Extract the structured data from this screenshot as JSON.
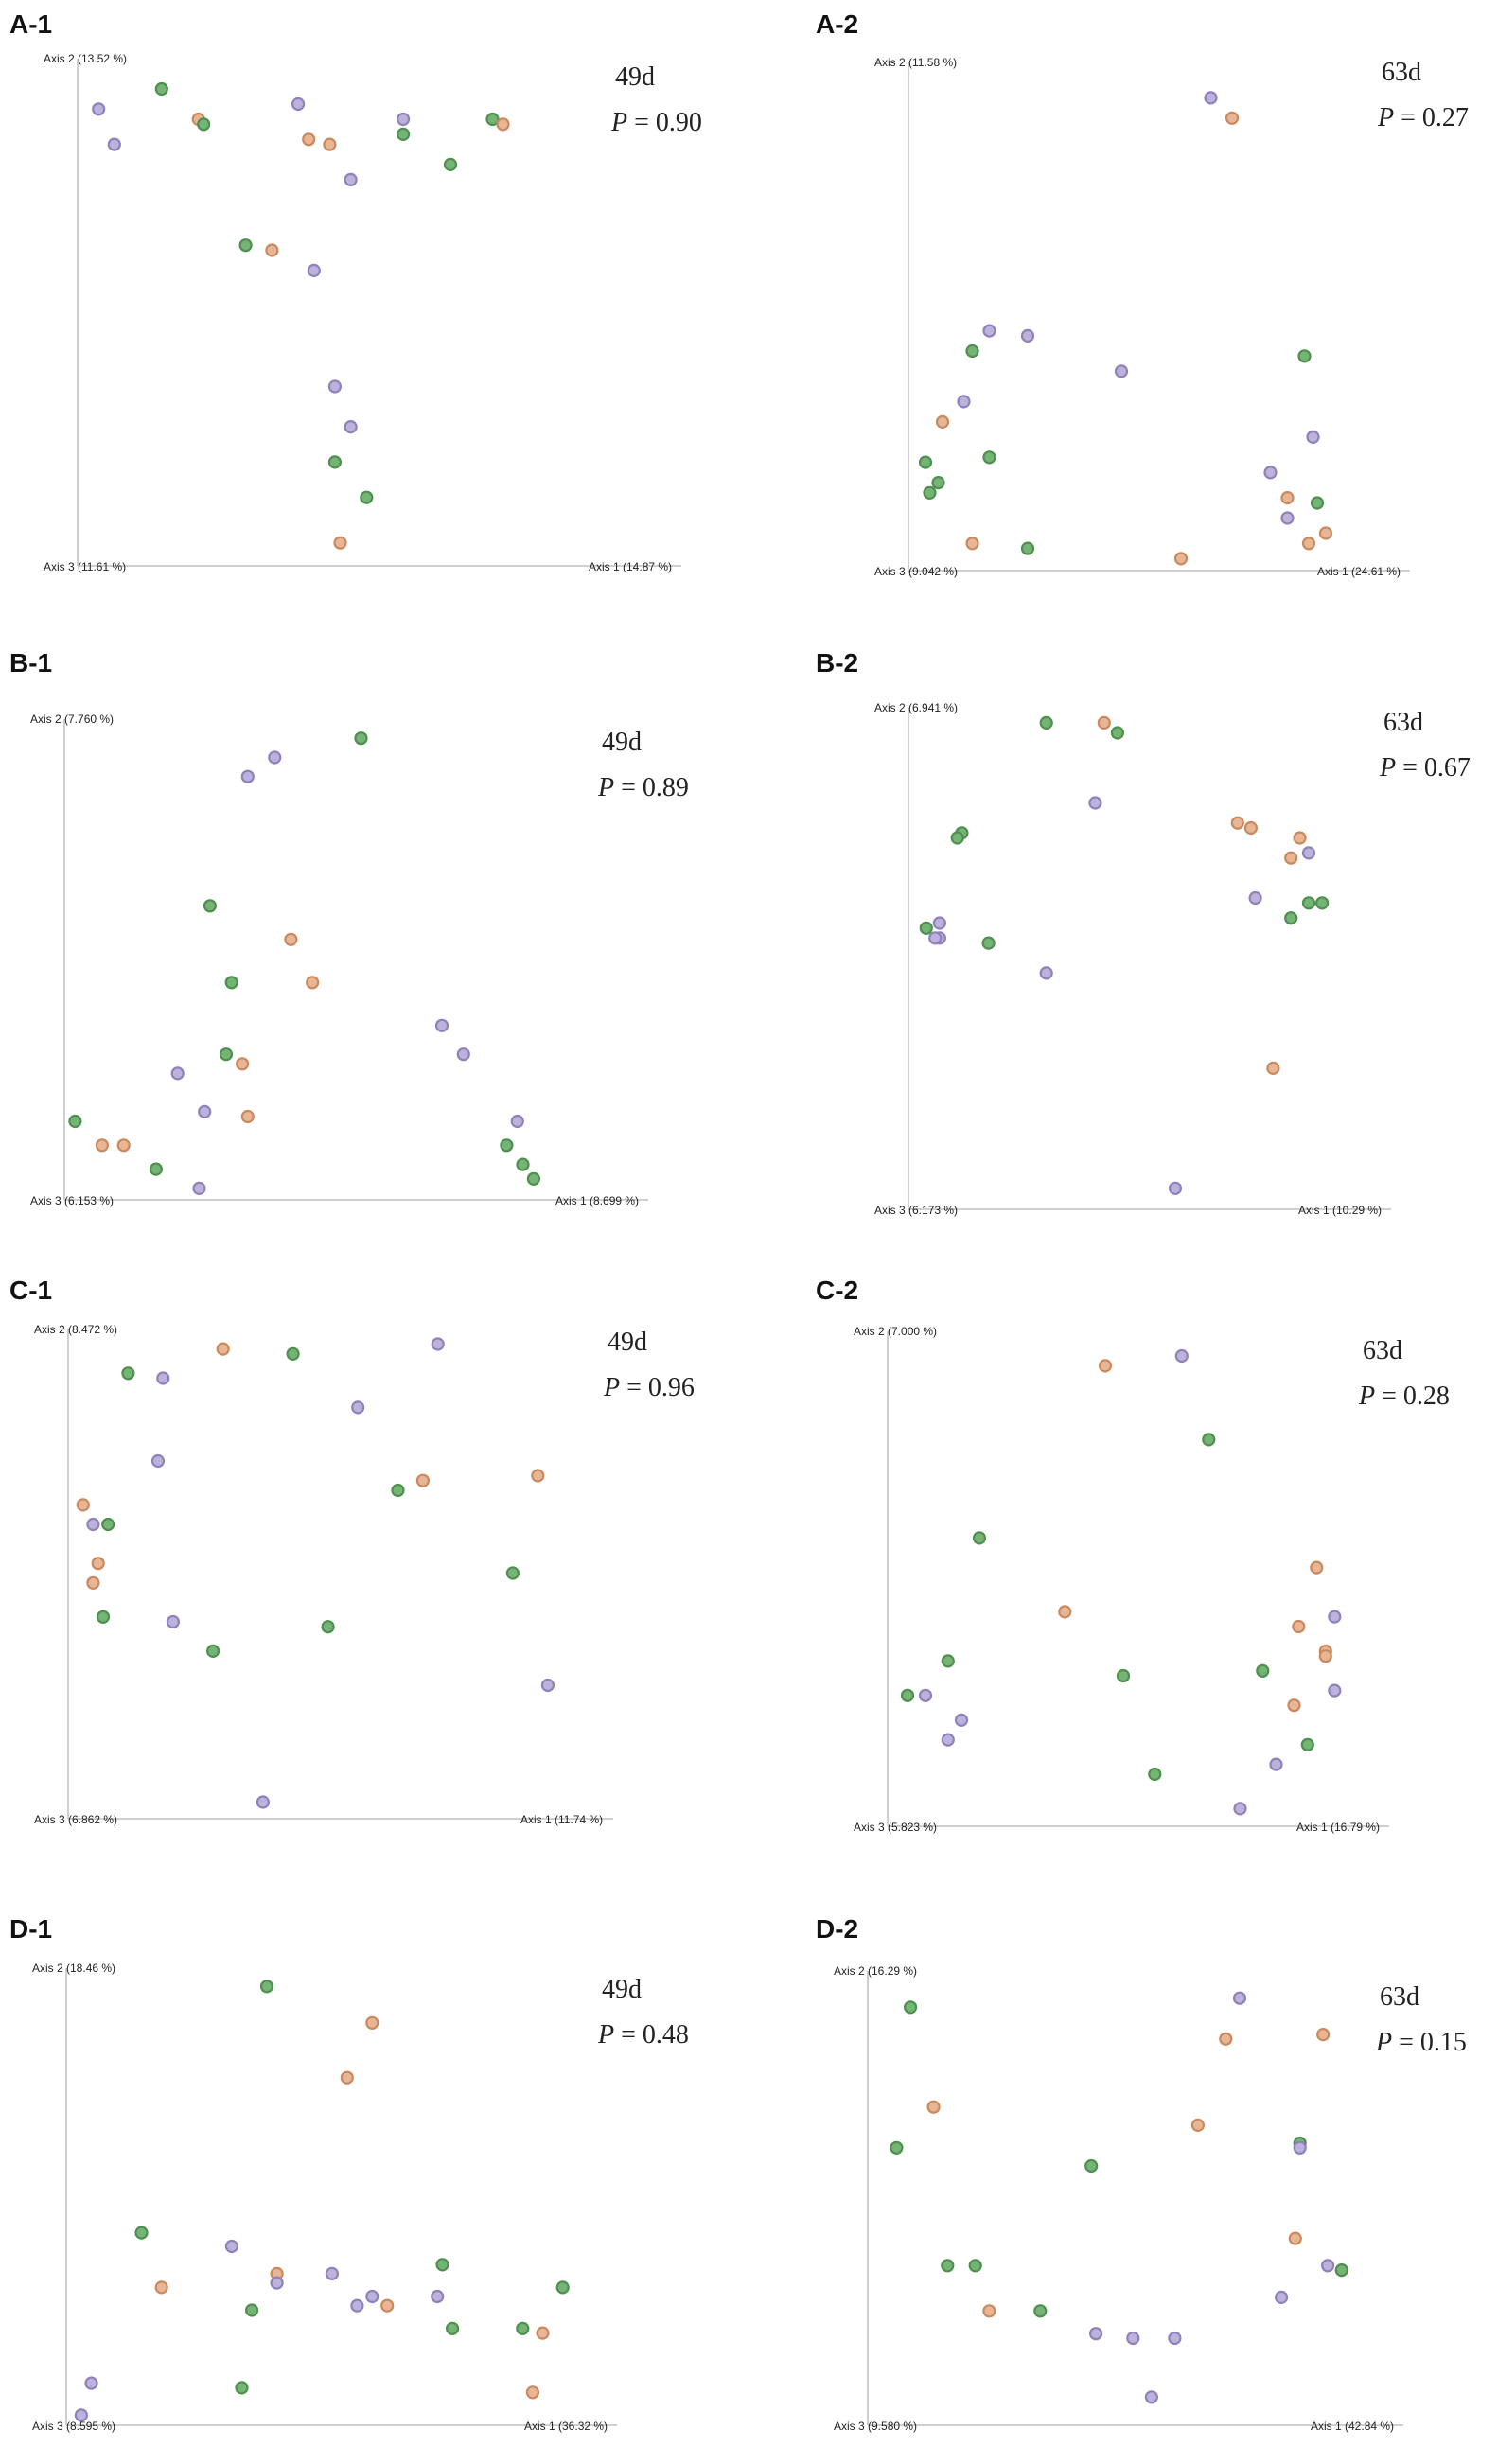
{
  "colors": {
    "orange": {
      "fill": "#e8b694",
      "stroke": "#c98a5f"
    },
    "green": {
      "fill": "#74b474",
      "stroke": "#4f8f4f"
    },
    "purple": {
      "fill": "#bcb2db",
      "stroke": "#8f82bb"
    }
  },
  "chart_data": [
    {
      "panel": "A-1",
      "type": "scatter",
      "day": "49d",
      "p_label": "P",
      "p_value": "= 0.90",
      "axis1_label": "Axis 1 (14.87 %)",
      "axis2_label": "Axis 2 (13.52 %)",
      "axis3_label": "Axis 3 (11.61 %)",
      "xlim": [
        0,
        1
      ],
      "ylim": [
        0,
        1
      ],
      "points": [
        {
          "x": 0.04,
          "y": 0.9,
          "group": "purple"
        },
        {
          "x": 0.07,
          "y": 0.83,
          "group": "purple"
        },
        {
          "x": 0.16,
          "y": 0.94,
          "group": "green"
        },
        {
          "x": 0.23,
          "y": 0.88,
          "group": "orange"
        },
        {
          "x": 0.24,
          "y": 0.87,
          "group": "green"
        },
        {
          "x": 0.42,
          "y": 0.91,
          "group": "purple"
        },
        {
          "x": 0.44,
          "y": 0.84,
          "group": "orange"
        },
        {
          "x": 0.48,
          "y": 0.83,
          "group": "orange"
        },
        {
          "x": 0.62,
          "y": 0.88,
          "group": "purple"
        },
        {
          "x": 0.62,
          "y": 0.85,
          "group": "green"
        },
        {
          "x": 0.79,
          "y": 0.88,
          "group": "green"
        },
        {
          "x": 0.81,
          "y": 0.87,
          "group": "orange"
        },
        {
          "x": 0.52,
          "y": 0.76,
          "group": "purple"
        },
        {
          "x": 0.71,
          "y": 0.79,
          "group": "green"
        },
        {
          "x": 0.32,
          "y": 0.63,
          "group": "green"
        },
        {
          "x": 0.37,
          "y": 0.62,
          "group": "orange"
        },
        {
          "x": 0.45,
          "y": 0.58,
          "group": "purple"
        },
        {
          "x": 0.49,
          "y": 0.35,
          "group": "purple"
        },
        {
          "x": 0.52,
          "y": 0.27,
          "group": "purple"
        },
        {
          "x": 0.49,
          "y": 0.2,
          "group": "green"
        },
        {
          "x": 0.55,
          "y": 0.13,
          "group": "green"
        },
        {
          "x": 0.5,
          "y": 0.04,
          "group": "orange"
        }
      ]
    },
    {
      "panel": "A-2",
      "type": "scatter",
      "day": "63d",
      "p_label": "P",
      "p_value": "= 0.27",
      "axis1_label": "Axis 1 (24.61 %)",
      "axis2_label": "Axis 2 (11.58 %)",
      "axis3_label": "Axis 3 (9.042 %)",
      "xlim": [
        0,
        1
      ],
      "ylim": [
        0,
        1
      ],
      "points": [
        {
          "x": 0.71,
          "y": 0.93,
          "group": "purple"
        },
        {
          "x": 0.76,
          "y": 0.89,
          "group": "orange"
        },
        {
          "x": 0.19,
          "y": 0.47,
          "group": "purple"
        },
        {
          "x": 0.28,
          "y": 0.46,
          "group": "purple"
        },
        {
          "x": 0.15,
          "y": 0.43,
          "group": "green"
        },
        {
          "x": 0.5,
          "y": 0.39,
          "group": "purple"
        },
        {
          "x": 0.93,
          "y": 0.42,
          "group": "green"
        },
        {
          "x": 0.13,
          "y": 0.33,
          "group": "purple"
        },
        {
          "x": 0.08,
          "y": 0.29,
          "group": "orange"
        },
        {
          "x": 0.95,
          "y": 0.26,
          "group": "purple"
        },
        {
          "x": 0.04,
          "y": 0.21,
          "group": "green"
        },
        {
          "x": 0.19,
          "y": 0.22,
          "group": "green"
        },
        {
          "x": 0.07,
          "y": 0.17,
          "group": "green"
        },
        {
          "x": 0.05,
          "y": 0.15,
          "group": "green"
        },
        {
          "x": 0.85,
          "y": 0.19,
          "group": "purple"
        },
        {
          "x": 0.89,
          "y": 0.14,
          "group": "orange"
        },
        {
          "x": 0.96,
          "y": 0.13,
          "group": "green"
        },
        {
          "x": 0.89,
          "y": 0.1,
          "group": "purple"
        },
        {
          "x": 0.98,
          "y": 0.07,
          "group": "orange"
        },
        {
          "x": 0.94,
          "y": 0.05,
          "group": "orange"
        },
        {
          "x": 0.15,
          "y": 0.05,
          "group": "orange"
        },
        {
          "x": 0.28,
          "y": 0.04,
          "group": "green"
        },
        {
          "x": 0.64,
          "y": 0.02,
          "group": "orange"
        }
      ]
    },
    {
      "panel": "B-1",
      "type": "scatter",
      "day": "49d",
      "p_label": "P",
      "p_value": "= 0.89",
      "axis1_label": "Axis 1 (8.699 %)",
      "axis2_label": "Axis 2 (7.760 %)",
      "axis3_label": "Axis 3 (6.153 %)",
      "xlim": [
        0,
        1
      ],
      "ylim": [
        0,
        1
      ],
      "points": [
        {
          "x": 0.55,
          "y": 0.96,
          "group": "green"
        },
        {
          "x": 0.39,
          "y": 0.92,
          "group": "purple"
        },
        {
          "x": 0.34,
          "y": 0.88,
          "group": "purple"
        },
        {
          "x": 0.27,
          "y": 0.61,
          "group": "green"
        },
        {
          "x": 0.42,
          "y": 0.54,
          "group": "orange"
        },
        {
          "x": 0.31,
          "y": 0.45,
          "group": "green"
        },
        {
          "x": 0.46,
          "y": 0.45,
          "group": "orange"
        },
        {
          "x": 0.7,
          "y": 0.36,
          "group": "purple"
        },
        {
          "x": 0.74,
          "y": 0.3,
          "group": "purple"
        },
        {
          "x": 0.3,
          "y": 0.3,
          "group": "green"
        },
        {
          "x": 0.33,
          "y": 0.28,
          "group": "orange"
        },
        {
          "x": 0.21,
          "y": 0.26,
          "group": "purple"
        },
        {
          "x": 0.26,
          "y": 0.18,
          "group": "purple"
        },
        {
          "x": 0.34,
          "y": 0.17,
          "group": "orange"
        },
        {
          "x": 0.02,
          "y": 0.16,
          "group": "green"
        },
        {
          "x": 0.07,
          "y": 0.11,
          "group": "orange"
        },
        {
          "x": 0.11,
          "y": 0.11,
          "group": "orange"
        },
        {
          "x": 0.17,
          "y": 0.06,
          "group": "green"
        },
        {
          "x": 0.25,
          "y": 0.02,
          "group": "purple"
        },
        {
          "x": 0.84,
          "y": 0.16,
          "group": "purple"
        },
        {
          "x": 0.82,
          "y": 0.11,
          "group": "green"
        },
        {
          "x": 0.85,
          "y": 0.07,
          "group": "green"
        },
        {
          "x": 0.87,
          "y": 0.04,
          "group": "green"
        }
      ]
    },
    {
      "panel": "B-2",
      "type": "scatter",
      "day": "63d",
      "p_label": "P",
      "p_value": "= 0.67",
      "axis1_label": "Axis 1 (10.29 %)",
      "axis2_label": "Axis 2 (6.941 %)",
      "axis3_label": "Axis 3 (6.173 %)",
      "xlim": [
        0,
        1
      ],
      "ylim": [
        0,
        1
      ],
      "points": [
        {
          "x": 0.31,
          "y": 0.97,
          "group": "green"
        },
        {
          "x": 0.44,
          "y": 0.97,
          "group": "orange"
        },
        {
          "x": 0.47,
          "y": 0.95,
          "group": "green"
        },
        {
          "x": 0.42,
          "y": 0.81,
          "group": "purple"
        },
        {
          "x": 0.12,
          "y": 0.75,
          "group": "green"
        },
        {
          "x": 0.11,
          "y": 0.74,
          "group": "green"
        },
        {
          "x": 0.74,
          "y": 0.77,
          "group": "orange"
        },
        {
          "x": 0.77,
          "y": 0.76,
          "group": "orange"
        },
        {
          "x": 0.88,
          "y": 0.74,
          "group": "orange"
        },
        {
          "x": 0.9,
          "y": 0.71,
          "group": "purple"
        },
        {
          "x": 0.86,
          "y": 0.7,
          "group": "orange"
        },
        {
          "x": 0.78,
          "y": 0.62,
          "group": "purple"
        },
        {
          "x": 0.9,
          "y": 0.61,
          "group": "green"
        },
        {
          "x": 0.93,
          "y": 0.61,
          "group": "green"
        },
        {
          "x": 0.86,
          "y": 0.58,
          "group": "green"
        },
        {
          "x": 0.04,
          "y": 0.56,
          "group": "green"
        },
        {
          "x": 0.07,
          "y": 0.57,
          "group": "purple"
        },
        {
          "x": 0.07,
          "y": 0.54,
          "group": "purple"
        },
        {
          "x": 0.06,
          "y": 0.54,
          "group": "purple"
        },
        {
          "x": 0.18,
          "y": 0.53,
          "group": "green"
        },
        {
          "x": 0.31,
          "y": 0.47,
          "group": "purple"
        },
        {
          "x": 0.82,
          "y": 0.28,
          "group": "orange"
        },
        {
          "x": 0.6,
          "y": 0.04,
          "group": "purple"
        }
      ]
    },
    {
      "panel": "C-1",
      "type": "scatter",
      "day": "49d",
      "p_label": "P",
      "p_value": "= 0.96",
      "axis1_label": "Axis 1 (11.74 %)",
      "axis2_label": "Axis 2 (8.472 %)",
      "axis3_label": "Axis 3 (6.862 %)",
      "xlim": [
        0,
        1
      ],
      "ylim": [
        0,
        1
      ],
      "points": [
        {
          "x": 0.31,
          "y": 0.96,
          "group": "orange"
        },
        {
          "x": 0.45,
          "y": 0.95,
          "group": "green"
        },
        {
          "x": 0.74,
          "y": 0.97,
          "group": "purple"
        },
        {
          "x": 0.12,
          "y": 0.91,
          "group": "green"
        },
        {
          "x": 0.19,
          "y": 0.9,
          "group": "purple"
        },
        {
          "x": 0.58,
          "y": 0.84,
          "group": "purple"
        },
        {
          "x": 0.18,
          "y": 0.73,
          "group": "purple"
        },
        {
          "x": 0.71,
          "y": 0.69,
          "group": "orange"
        },
        {
          "x": 0.66,
          "y": 0.67,
          "group": "green"
        },
        {
          "x": 0.94,
          "y": 0.7,
          "group": "orange"
        },
        {
          "x": 0.03,
          "y": 0.64,
          "group": "orange"
        },
        {
          "x": 0.05,
          "y": 0.6,
          "group": "purple"
        },
        {
          "x": 0.08,
          "y": 0.6,
          "group": "green"
        },
        {
          "x": 0.06,
          "y": 0.52,
          "group": "orange"
        },
        {
          "x": 0.05,
          "y": 0.48,
          "group": "orange"
        },
        {
          "x": 0.07,
          "y": 0.41,
          "group": "green"
        },
        {
          "x": 0.21,
          "y": 0.4,
          "group": "purple"
        },
        {
          "x": 0.89,
          "y": 0.5,
          "group": "green"
        },
        {
          "x": 0.52,
          "y": 0.39,
          "group": "green"
        },
        {
          "x": 0.29,
          "y": 0.34,
          "group": "green"
        },
        {
          "x": 0.96,
          "y": 0.27,
          "group": "purple"
        },
        {
          "x": 0.39,
          "y": 0.03,
          "group": "purple"
        }
      ]
    },
    {
      "panel": "C-2",
      "type": "scatter",
      "day": "63d",
      "p_label": "P",
      "p_value": "= 0.28",
      "axis1_label": "Axis 1 (16.79 %)",
      "axis2_label": "Axis 2 (7.000 %)",
      "axis3_label": "Axis 3 (5.823 %)",
      "xlim": [
        0,
        1
      ],
      "ylim": [
        0,
        1
      ],
      "points": [
        {
          "x": 0.48,
          "y": 0.93,
          "group": "orange"
        },
        {
          "x": 0.65,
          "y": 0.95,
          "group": "purple"
        },
        {
          "x": 0.71,
          "y": 0.78,
          "group": "green"
        },
        {
          "x": 0.2,
          "y": 0.58,
          "group": "green"
        },
        {
          "x": 0.95,
          "y": 0.52,
          "group": "orange"
        },
        {
          "x": 0.39,
          "y": 0.43,
          "group": "orange"
        },
        {
          "x": 0.91,
          "y": 0.4,
          "group": "orange"
        },
        {
          "x": 0.99,
          "y": 0.42,
          "group": "purple"
        },
        {
          "x": 0.97,
          "y": 0.35,
          "group": "orange"
        },
        {
          "x": 0.97,
          "y": 0.34,
          "group": "orange"
        },
        {
          "x": 0.13,
          "y": 0.33,
          "group": "green"
        },
        {
          "x": 0.52,
          "y": 0.3,
          "group": "green"
        },
        {
          "x": 0.83,
          "y": 0.31,
          "group": "green"
        },
        {
          "x": 0.04,
          "y": 0.26,
          "group": "green"
        },
        {
          "x": 0.08,
          "y": 0.26,
          "group": "purple"
        },
        {
          "x": 0.99,
          "y": 0.27,
          "group": "purple"
        },
        {
          "x": 0.9,
          "y": 0.24,
          "group": "orange"
        },
        {
          "x": 0.16,
          "y": 0.21,
          "group": "purple"
        },
        {
          "x": 0.13,
          "y": 0.17,
          "group": "purple"
        },
        {
          "x": 0.93,
          "y": 0.16,
          "group": "green"
        },
        {
          "x": 0.86,
          "y": 0.12,
          "group": "purple"
        },
        {
          "x": 0.59,
          "y": 0.1,
          "group": "green"
        },
        {
          "x": 0.78,
          "y": 0.03,
          "group": "purple"
        }
      ]
    },
    {
      "panel": "D-1",
      "type": "scatter",
      "day": "49d",
      "p_label": "P",
      "p_value": "= 0.48",
      "axis1_label": "Axis 1 (36.32 %)",
      "axis2_label": "Axis 2 (18.46 %)",
      "axis3_label": "Axis 3 (8.595 %)",
      "xlim": [
        0,
        1
      ],
      "ylim": [
        0,
        1
      ],
      "points": [
        {
          "x": 0.4,
          "y": 0.96,
          "group": "green"
        },
        {
          "x": 0.61,
          "y": 0.88,
          "group": "orange"
        },
        {
          "x": 0.56,
          "y": 0.76,
          "group": "orange"
        },
        {
          "x": 0.15,
          "y": 0.42,
          "group": "green"
        },
        {
          "x": 0.33,
          "y": 0.39,
          "group": "purple"
        },
        {
          "x": 0.42,
          "y": 0.33,
          "group": "orange"
        },
        {
          "x": 0.53,
          "y": 0.33,
          "group": "purple"
        },
        {
          "x": 0.75,
          "y": 0.35,
          "group": "green"
        },
        {
          "x": 0.19,
          "y": 0.3,
          "group": "orange"
        },
        {
          "x": 0.42,
          "y": 0.31,
          "group": "purple"
        },
        {
          "x": 0.99,
          "y": 0.3,
          "group": "green"
        },
        {
          "x": 0.61,
          "y": 0.28,
          "group": "purple"
        },
        {
          "x": 0.64,
          "y": 0.26,
          "group": "orange"
        },
        {
          "x": 0.58,
          "y": 0.26,
          "group": "purple"
        },
        {
          "x": 0.74,
          "y": 0.28,
          "group": "purple"
        },
        {
          "x": 0.37,
          "y": 0.25,
          "group": "green"
        },
        {
          "x": 0.77,
          "y": 0.21,
          "group": "green"
        },
        {
          "x": 0.91,
          "y": 0.21,
          "group": "green"
        },
        {
          "x": 0.95,
          "y": 0.2,
          "group": "orange"
        },
        {
          "x": 0.05,
          "y": 0.09,
          "group": "purple"
        },
        {
          "x": 0.35,
          "y": 0.08,
          "group": "green"
        },
        {
          "x": 0.93,
          "y": 0.07,
          "group": "orange"
        },
        {
          "x": 0.03,
          "y": 0.02,
          "group": "purple"
        }
      ]
    },
    {
      "panel": "D-2",
      "type": "scatter",
      "day": "63d",
      "p_label": "P",
      "p_value": "= 0.15",
      "axis1_label": "Axis 1 (42.84 %)",
      "axis2_label": "Axis 2 (16.29 %)",
      "axis3_label": "Axis 3 (9.580 %)",
      "xlim": [
        0,
        1
      ],
      "ylim": [
        0,
        1
      ],
      "points": [
        {
          "x": 0.09,
          "y": 0.92,
          "group": "green"
        },
        {
          "x": 0.8,
          "y": 0.94,
          "group": "purple"
        },
        {
          "x": 0.77,
          "y": 0.85,
          "group": "orange"
        },
        {
          "x": 0.98,
          "y": 0.86,
          "group": "orange"
        },
        {
          "x": 0.14,
          "y": 0.7,
          "group": "orange"
        },
        {
          "x": 0.71,
          "y": 0.66,
          "group": "orange"
        },
        {
          "x": 0.06,
          "y": 0.61,
          "group": "green"
        },
        {
          "x": 0.93,
          "y": 0.62,
          "group": "green"
        },
        {
          "x": 0.93,
          "y": 0.61,
          "group": "purple"
        },
        {
          "x": 0.48,
          "y": 0.57,
          "group": "green"
        },
        {
          "x": 0.92,
          "y": 0.41,
          "group": "orange"
        },
        {
          "x": 0.17,
          "y": 0.35,
          "group": "green"
        },
        {
          "x": 0.23,
          "y": 0.35,
          "group": "green"
        },
        {
          "x": 0.99,
          "y": 0.35,
          "group": "purple"
        },
        {
          "x": 1.02,
          "y": 0.34,
          "group": "orange"
        },
        {
          "x": 1.02,
          "y": 0.34,
          "group": "green"
        },
        {
          "x": 0.89,
          "y": 0.28,
          "group": "purple"
        },
        {
          "x": 0.26,
          "y": 0.25,
          "group": "orange"
        },
        {
          "x": 0.37,
          "y": 0.25,
          "group": "green"
        },
        {
          "x": 0.49,
          "y": 0.2,
          "group": "purple"
        },
        {
          "x": 0.57,
          "y": 0.19,
          "group": "purple"
        },
        {
          "x": 0.66,
          "y": 0.19,
          "group": "purple"
        },
        {
          "x": 0.61,
          "y": 0.06,
          "group": "purple"
        }
      ]
    }
  ]
}
